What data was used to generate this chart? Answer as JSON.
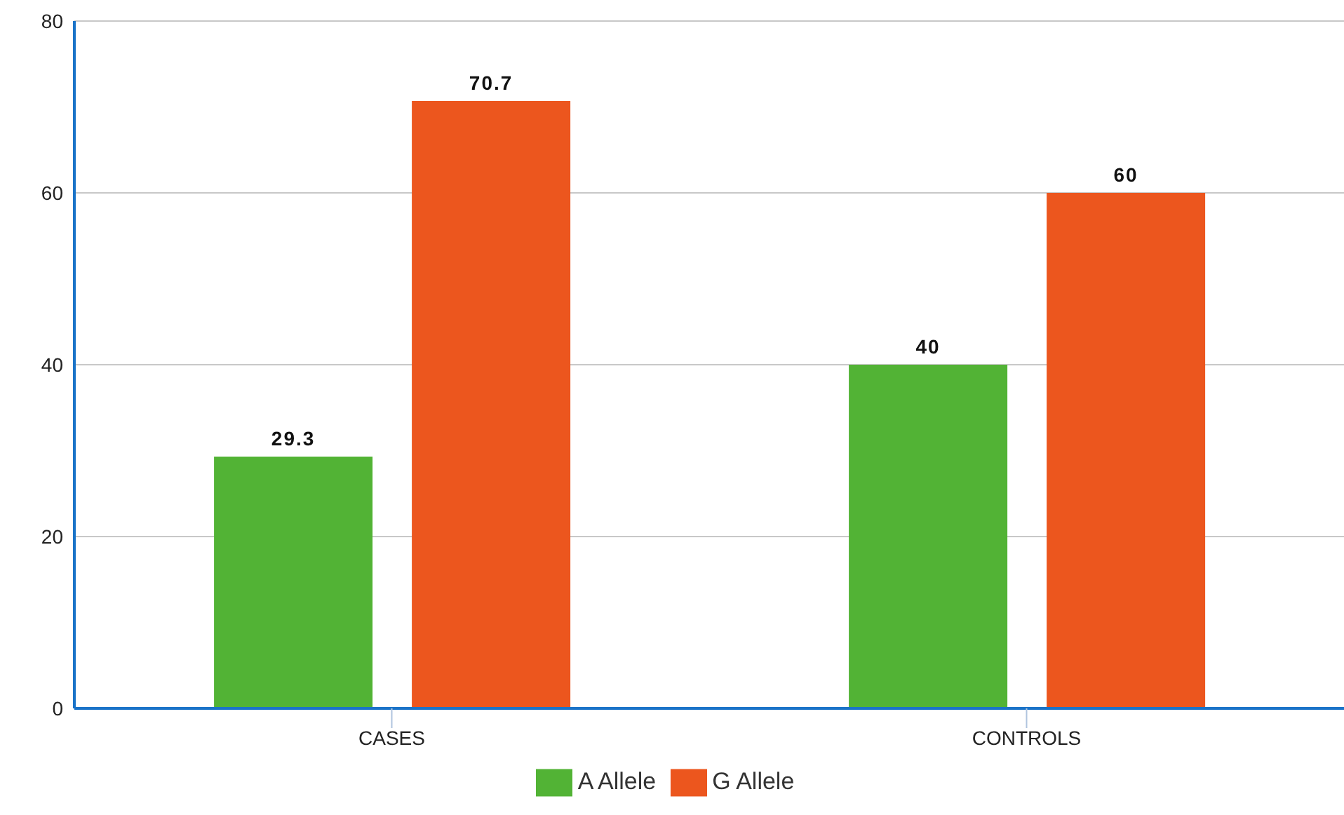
{
  "chart_data": {
    "type": "bar",
    "categories": [
      "CASES",
      "CONTROLS"
    ],
    "series": [
      {
        "name": "A Allele",
        "color": "#52b335",
        "values": [
          29.3,
          40
        ]
      },
      {
        "name": "G Allele",
        "color": "#ec561e",
        "values": [
          70.7,
          60
        ]
      }
    ],
    "ylim": [
      0,
      80
    ],
    "yticks": [
      0,
      20,
      40,
      60,
      80
    ],
    "grid": "y",
    "legend": "bottom",
    "data_labels": true
  }
}
